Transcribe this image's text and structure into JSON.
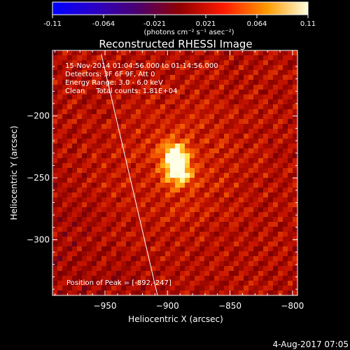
{
  "colorbar": {
    "ticks": [
      "-0.11",
      "-0.064",
      "-0.021",
      "0.021",
      "0.064",
      "0.11"
    ],
    "units": "(photons cm⁻² s⁻¹ asec⁻²)",
    "vmin": -0.11,
    "vmax": 0.11
  },
  "title": "Reconstructed RHESSI Image",
  "annotations": {
    "time": "15-Nov-2014 01:04:56.000 to 01:14:56.000",
    "detectors": "Detectors: 3F 6F 9F, Att 0",
    "energy": "Energy Range: 3.0 - 6.0 keV",
    "clean": "Clean     Total counts: 1.81E+04",
    "peak": "Position of Peak = [-892,-247]"
  },
  "axes": {
    "xlabel": "Heliocentric X (arcsec)",
    "ylabel": "Heliocentric Y (arcsec)",
    "xticks": [
      "−950",
      "−900",
      "−850",
      "−800"
    ],
    "yticks": [
      "−200",
      "−250",
      "−300"
    ]
  },
  "footer": {
    "date": "4-Aug-2017 07:05"
  },
  "chart_data": {
    "type": "heatmap",
    "title": "Reconstructed RHESSI Image",
    "xlabel": "Heliocentric X (arcsec)",
    "ylabel": "Heliocentric Y (arcsec)",
    "xlim": [
      -992,
      -796
    ],
    "ylim": [
      -345,
      -147
    ],
    "xticks": [
      -950,
      -900,
      -850,
      -800
    ],
    "yticks": [
      -200,
      -250,
      -300
    ],
    "colorbar_range": [
      -0.11,
      0.11
    ],
    "colormap": "red-temperature",
    "peak": [
      -892,
      -247
    ],
    "sources": [
      {
        "x": -894,
        "y": -231,
        "intensity": 1.0
      },
      {
        "x": -891,
        "y": -246,
        "intensity": 0.95
      }
    ],
    "limb_line": [
      [
        -953,
        -150
      ],
      [
        -908,
        -345
      ]
    ]
  }
}
